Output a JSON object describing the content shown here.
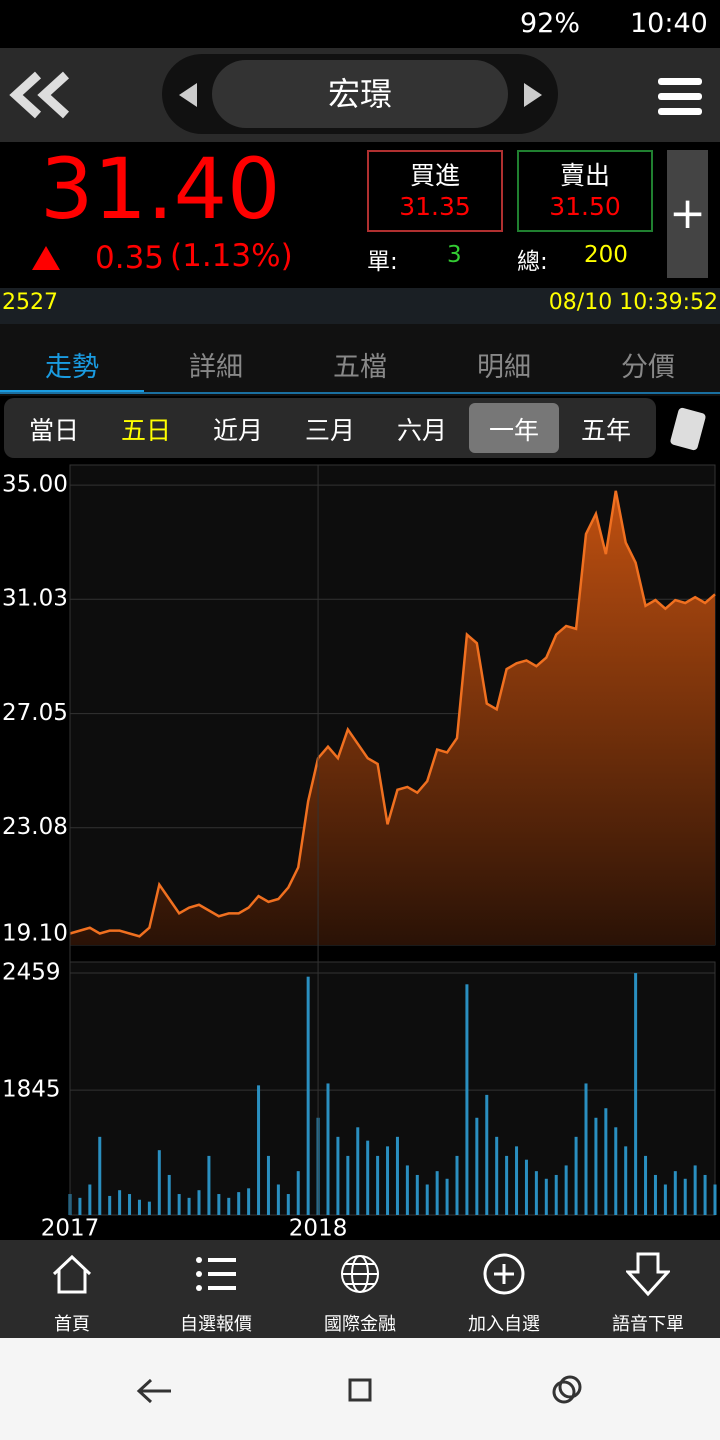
{
  "status_bar": {
    "battery": "92%",
    "time": "10:40"
  },
  "header": {
    "title": "宏璟"
  },
  "quote": {
    "price": "31.40",
    "change": "0.35",
    "change_pct": "(1.13%)",
    "bid": {
      "label": "買進",
      "value": "31.35"
    },
    "ask": {
      "label": "賣出",
      "value": "31.50"
    },
    "single": {
      "label": "單:",
      "value": "3"
    },
    "total": {
      "label": "總:",
      "value": "200"
    },
    "code": "2527",
    "datetime": "08/10 10:39:52"
  },
  "tabs": [
    "走勢",
    "詳細",
    "五檔",
    "明細",
    "分價"
  ],
  "ranges": [
    "當日",
    "五日",
    "近月",
    "三月",
    "六月",
    "一年",
    "五年"
  ],
  "chart_data": [
    {
      "type": "line",
      "color": "#f07020",
      "ylim": [
        19.0,
        35.7
      ],
      "yticks": [
        {
          "value": 19.1,
          "label": "19.10"
        },
        23.08,
        27.05,
        31.03,
        {
          "value": 35,
          "label": "35.00"
        }
      ],
      "grid": true,
      "values": [
        19.4,
        19.5,
        19.6,
        19.4,
        19.5,
        19.5,
        19.4,
        19.3,
        19.6,
        21.1,
        20.6,
        20.1,
        20.3,
        20.4,
        20.2,
        20.0,
        20.1,
        20.1,
        20.3,
        20.7,
        20.5,
        20.6,
        21.0,
        21.7,
        24.0,
        25.5,
        25.9,
        25.5,
        26.5,
        26.0,
        25.5,
        25.3,
        23.2,
        24.4,
        24.5,
        24.3,
        24.7,
        25.8,
        25.7,
        26.2,
        29.8,
        29.5,
        27.4,
        27.2,
        28.6,
        28.8,
        28.9,
        28.7,
        29.0,
        29.8,
        30.1,
        30.0,
        33.3,
        34.0,
        32.6,
        34.8,
        33.0,
        32.3,
        30.8,
        31.0,
        30.7,
        31.0,
        30.9,
        31.1,
        30.9,
        31.2
      ]
    },
    {
      "type": "bar",
      "color": "#2a8fc0",
      "ylim": [
        1190,
        2517
      ],
      "yticks": [
        1845,
        2459
      ],
      "grid": true,
      "categories": [
        "2017",
        null,
        null,
        null,
        null,
        null,
        null,
        null,
        null,
        null,
        null,
        null,
        null,
        null,
        null,
        null,
        null,
        null,
        null,
        null,
        null,
        null,
        null,
        null,
        null,
        "2018",
        null,
        null,
        null,
        null,
        null,
        null,
        null,
        null,
        null,
        null,
        null,
        null,
        null,
        null,
        null,
        null,
        null,
        null,
        null,
        null,
        null,
        null,
        null,
        null,
        null,
        null,
        null,
        null,
        null,
        null,
        null,
        null,
        null,
        null,
        null,
        null,
        null,
        null,
        null,
        null
      ],
      "values": [
        1300,
        1280,
        1350,
        1600,
        1290,
        1320,
        1300,
        1270,
        1260,
        1530,
        1400,
        1300,
        1280,
        1320,
        1500,
        1300,
        1280,
        1310,
        1330,
        1870,
        1500,
        1350,
        1300,
        1420,
        2440,
        1700,
        1880,
        1600,
        1500,
        1650,
        1580,
        1500,
        1550,
        1600,
        1450,
        1400,
        1350,
        1420,
        1380,
        1500,
        2400,
        1700,
        1820,
        1600,
        1500,
        1550,
        1480,
        1420,
        1380,
        1400,
        1450,
        1600,
        1880,
        1700,
        1750,
        1650,
        1550,
        2459,
        1500,
        1400,
        1350,
        1420,
        1380,
        1450,
        1400,
        1350
      ]
    }
  ],
  "nav": [
    "首頁",
    "自選報價",
    "國際金融",
    "加入自選",
    "語音下單"
  ]
}
